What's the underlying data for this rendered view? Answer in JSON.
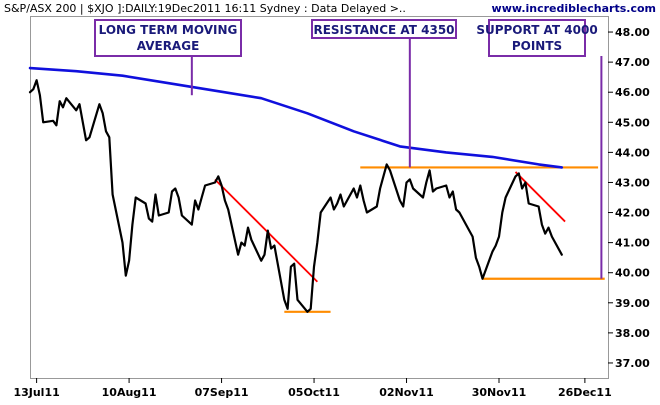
{
  "header": {
    "title": "S&P/ASX 200 | $XJO ]:DAILY:19Dec2011 16:11 Sydney : Data Delayed >..",
    "website": "www.incrediblecharts.com"
  },
  "colors": {
    "background": "#ffffff",
    "plot_border": "#999999",
    "price_line": "#000000",
    "moving_average": "#1010dd",
    "trendline": "#ff0000",
    "level": "#ff8c00",
    "annotation_border": "#7a2ca8",
    "annotation_text": "#1a1a7a"
  },
  "chart_data": {
    "type": "line",
    "title": "",
    "xlabel": "",
    "ylabel": "",
    "x_axis": {
      "type": "date",
      "range": [
        "2011-07-11",
        "2012-01-02"
      ],
      "ticks": [
        {
          "date": "2011-07-13",
          "label": "13Jul11"
        },
        {
          "date": "2011-08-10",
          "label": "10Aug11"
        },
        {
          "date": "2011-09-07",
          "label": "07Sep11"
        },
        {
          "date": "2011-10-05",
          "label": "05Oct11"
        },
        {
          "date": "2011-11-02",
          "label": "02Nov11"
        },
        {
          "date": "2011-11-30",
          "label": "30Nov11"
        },
        {
          "date": "2011-12-26",
          "label": "26Dec11"
        }
      ]
    },
    "y_axis": {
      "position": "right",
      "range": [
        3650,
        4850
      ],
      "ticks": [
        3700,
        3800,
        3900,
        4000,
        4100,
        4200,
        4300,
        4400,
        4500,
        4600,
        4700,
        4800
      ],
      "tick_labels": [
        "37.00",
        "38.00",
        "39.00",
        "40.00",
        "41.00",
        "42.00",
        "43.00",
        "44.00",
        "45.00",
        "46.00",
        "47.00",
        "48.00"
      ]
    },
    "grid": false,
    "series": [
      {
        "name": "",
        "role": "close",
        "points": [
          [
            "2011-07-11",
            4600
          ],
          [
            "2011-07-12",
            4610
          ],
          [
            "2011-07-13",
            4640
          ],
          [
            "2011-07-14",
            4590
          ],
          [
            "2011-07-15",
            4500
          ],
          [
            "2011-07-18",
            4505
          ],
          [
            "2011-07-19",
            4490
          ],
          [
            "2011-07-20",
            4570
          ],
          [
            "2011-07-21",
            4550
          ],
          [
            "2011-07-22",
            4580
          ],
          [
            "2011-07-25",
            4540
          ],
          [
            "2011-07-26",
            4560
          ],
          [
            "2011-07-27",
            4500
          ],
          [
            "2011-07-28",
            4440
          ],
          [
            "2011-07-29",
            4450
          ],
          [
            "2011-08-01",
            4560
          ],
          [
            "2011-08-02",
            4530
          ],
          [
            "2011-08-03",
            4470
          ],
          [
            "2011-08-04",
            4450
          ],
          [
            "2011-08-05",
            4260
          ],
          [
            "2011-08-08",
            4100
          ],
          [
            "2011-08-09",
            3990
          ],
          [
            "2011-08-10",
            4040
          ],
          [
            "2011-08-11",
            4160
          ],
          [
            "2011-08-12",
            4250
          ],
          [
            "2011-08-15",
            4230
          ],
          [
            "2011-08-16",
            4180
          ],
          [
            "2011-08-17",
            4170
          ],
          [
            "2011-08-18",
            4260
          ],
          [
            "2011-08-19",
            4190
          ],
          [
            "2011-08-22",
            4200
          ],
          [
            "2011-08-23",
            4270
          ],
          [
            "2011-08-24",
            4280
          ],
          [
            "2011-08-25",
            4250
          ],
          [
            "2011-08-26",
            4190
          ],
          [
            "2011-08-29",
            4160
          ],
          [
            "2011-08-30",
            4240
          ],
          [
            "2011-08-31",
            4210
          ],
          [
            "2011-09-01",
            4250
          ],
          [
            "2011-09-02",
            4290
          ],
          [
            "2011-09-05",
            4300
          ],
          [
            "2011-09-06",
            4320
          ],
          [
            "2011-09-07",
            4290
          ],
          [
            "2011-09-08",
            4240
          ],
          [
            "2011-09-09",
            4210
          ],
          [
            "2011-09-12",
            4060
          ],
          [
            "2011-09-13",
            4100
          ],
          [
            "2011-09-14",
            4090
          ],
          [
            "2011-09-15",
            4150
          ],
          [
            "2011-09-16",
            4110
          ],
          [
            "2011-09-19",
            4040
          ],
          [
            "2011-09-20",
            4060
          ],
          [
            "2011-09-21",
            4140
          ],
          [
            "2011-09-22",
            4080
          ],
          [
            "2011-09-23",
            4090
          ],
          [
            "2011-09-26",
            3910
          ],
          [
            "2011-09-27",
            3880
          ],
          [
            "2011-09-28",
            4020
          ],
          [
            "2011-09-29",
            4030
          ],
          [
            "2011-09-30",
            3910
          ],
          [
            "2011-10-03",
            3870
          ],
          [
            "2011-10-04",
            3880
          ],
          [
            "2011-10-05",
            4020
          ],
          [
            "2011-10-06",
            4100
          ],
          [
            "2011-10-07",
            4200
          ],
          [
            "2011-10-10",
            4250
          ],
          [
            "2011-10-11",
            4210
          ],
          [
            "2011-10-12",
            4230
          ],
          [
            "2011-10-13",
            4260
          ],
          [
            "2011-10-14",
            4220
          ],
          [
            "2011-10-17",
            4280
          ],
          [
            "2011-10-18",
            4250
          ],
          [
            "2011-10-19",
            4290
          ],
          [
            "2011-10-20",
            4240
          ],
          [
            "2011-10-21",
            4200
          ],
          [
            "2011-10-24",
            4220
          ],
          [
            "2011-10-25",
            4280
          ],
          [
            "2011-10-26",
            4320
          ],
          [
            "2011-10-27",
            4360
          ],
          [
            "2011-10-28",
            4340
          ],
          [
            "2011-10-31",
            4240
          ],
          [
            "2011-11-01",
            4220
          ],
          [
            "2011-11-02",
            4300
          ],
          [
            "2011-11-03",
            4310
          ],
          [
            "2011-11-04",
            4280
          ],
          [
            "2011-11-07",
            4250
          ],
          [
            "2011-11-08",
            4300
          ],
          [
            "2011-11-09",
            4340
          ],
          [
            "2011-11-10",
            4270
          ],
          [
            "2011-11-11",
            4280
          ],
          [
            "2011-11-14",
            4290
          ],
          [
            "2011-11-15",
            4250
          ],
          [
            "2011-11-16",
            4270
          ],
          [
            "2011-11-17",
            4210
          ],
          [
            "2011-11-18",
            4200
          ],
          [
            "2011-11-21",
            4140
          ],
          [
            "2011-11-22",
            4120
          ],
          [
            "2011-11-23",
            4050
          ],
          [
            "2011-11-24",
            4020
          ],
          [
            "2011-11-25",
            3980
          ],
          [
            "2011-11-28",
            4070
          ],
          [
            "2011-11-29",
            4090
          ],
          [
            "2011-11-30",
            4120
          ],
          [
            "2011-12-01",
            4200
          ],
          [
            "2011-12-02",
            4250
          ],
          [
            "2011-12-05",
            4320
          ],
          [
            "2011-12-06",
            4330
          ],
          [
            "2011-12-07",
            4280
          ],
          [
            "2011-12-08",
            4300
          ],
          [
            "2011-12-09",
            4230
          ],
          [
            "2011-12-12",
            4220
          ],
          [
            "2011-12-13",
            4160
          ],
          [
            "2011-12-14",
            4130
          ],
          [
            "2011-12-15",
            4150
          ],
          [
            "2011-12-16",
            4120
          ],
          [
            "2011-12-19",
            4060
          ]
        ]
      },
      {
        "name": "",
        "role": "moving_average",
        "points": [
          [
            "2011-07-11",
            4680
          ],
          [
            "2011-07-25",
            4670
          ],
          [
            "2011-08-08",
            4655
          ],
          [
            "2011-08-22",
            4630
          ],
          [
            "2011-09-05",
            4605
          ],
          [
            "2011-09-19",
            4580
          ],
          [
            "2011-10-03",
            4530
          ],
          [
            "2011-10-17",
            4470
          ],
          [
            "2011-10-31",
            4420
          ],
          [
            "2011-11-14",
            4400
          ],
          [
            "2011-11-28",
            4385
          ],
          [
            "2011-12-12",
            4360
          ],
          [
            "2011-12-19",
            4350
          ]
        ]
      }
    ],
    "trendlines": [
      {
        "from": [
          "2011-09-05",
          4310
        ],
        "to": [
          "2011-10-06",
          3970
        ]
      },
      {
        "from": [
          "2011-12-05",
          4335
        ],
        "to": [
          "2011-12-20",
          4170
        ]
      }
    ],
    "levels": [
      {
        "value": 3870,
        "from": "2011-09-26",
        "to": "2011-10-10"
      },
      {
        "value": 4350,
        "from": "2011-10-19",
        "to": "2011-12-30"
      },
      {
        "value": 3980,
        "from": "2011-11-25",
        "to": "2012-01-01"
      }
    ],
    "annotations": [
      {
        "text": [
          "LONG TERM MOVING",
          "AVERAGE"
        ],
        "pointer": {
          "date": "2011-08-29",
          "value": 4590
        }
      },
      {
        "text": [
          "RESISTANCE AT 4350"
        ],
        "pointer": {
          "date": "2011-11-03",
          "value": 4350
        }
      },
      {
        "text": [
          "SUPPORT AT 4000",
          "POINTS"
        ],
        "pointer": {
          "date": "2011-12-31",
          "value": 3980
        }
      }
    ]
  }
}
